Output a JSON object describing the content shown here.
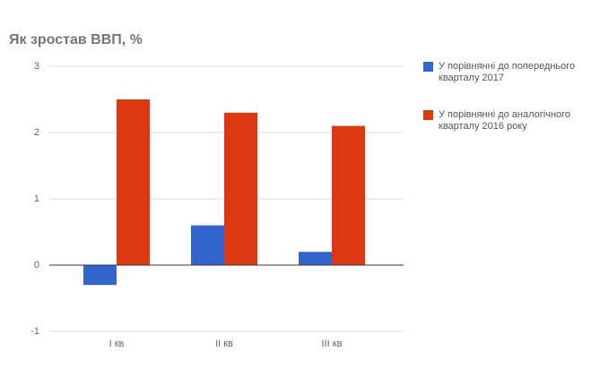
{
  "chart_data": {
    "type": "bar",
    "title": "Як зростав ВВП, %",
    "categories": [
      "I кв",
      "II кв",
      "III кв"
    ],
    "series": [
      {
        "name": "У порівнянні до попереднього кварталу 2017",
        "color": "#3366cc",
        "values": [
          -0.3,
          0.6,
          0.2
        ]
      },
      {
        "name": "У порівнянні до аналогічного кварталу 2016 року",
        "color": "#dc3912",
        "values": [
          2.5,
          2.3,
          2.1
        ]
      }
    ],
    "ylim": [
      -1,
      3
    ],
    "yticks": [
      -1,
      0,
      1,
      2,
      3
    ],
    "grid": true,
    "legend": "right"
  }
}
